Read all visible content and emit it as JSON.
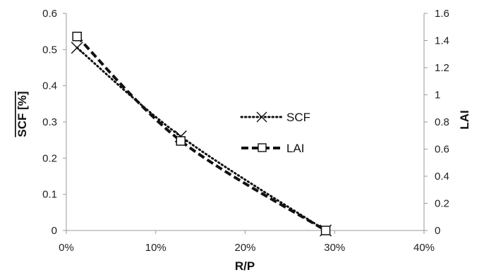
{
  "chart_data": {
    "type": "line",
    "title": "",
    "xlabel": "R/P",
    "ylabel": "SCF [%]",
    "y2label": "LAI",
    "xlim": [
      0,
      0.4
    ],
    "ylim": [
      0,
      0.6
    ],
    "y2lim": [
      0,
      1.6
    ],
    "x_ticks": [
      "0%",
      "10%",
      "20%",
      "30%",
      "40%"
    ],
    "y_ticks": [
      "0",
      "0.1",
      "0.2",
      "0.3",
      "0.4",
      "0.5",
      "0.6"
    ],
    "y2_ticks": [
      "0",
      "0.2",
      "0.4",
      "0.6",
      "0.8",
      "1",
      "1.2",
      "1.4",
      "1.6"
    ],
    "grid": false,
    "legend_position": "center-right",
    "series": [
      {
        "name": "SCF",
        "axis": "left",
        "line_style": "dotted",
        "marker": "x",
        "color": "#111111",
        "x": [
          0.012,
          0.128,
          0.29
        ],
        "y": [
          0.505,
          0.26,
          0.0
        ]
      },
      {
        "name": "LAI",
        "axis": "right",
        "line_style": "dashed",
        "marker": "square",
        "color": "#111111",
        "x": [
          0.012,
          0.128,
          0.29
        ],
        "y": [
          1.43,
          0.66,
          0.0
        ]
      }
    ]
  }
}
